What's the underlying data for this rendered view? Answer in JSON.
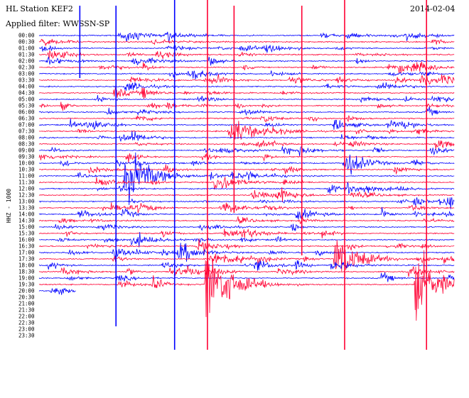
{
  "header": {
    "station": "HL Station KEF2",
    "date": "2014-02-04",
    "filter": "Applied filter: WWSSN-SP"
  },
  "chart_data": {
    "type": "line",
    "title": "HL Station KEF2",
    "subtitle": "Applied filter: WWSSN-SP",
    "date": "2014-02-04",
    "ylabel": "HHZ - 1000",
    "row_labels": [
      "00:00",
      "00:30",
      "01:00",
      "01:30",
      "02:00",
      "02:30",
      "03:00",
      "03:30",
      "04:00",
      "04:30",
      "05:00",
      "05:30",
      "06:00",
      "06:30",
      "07:00",
      "07:30",
      "08:00",
      "08:30",
      "09:00",
      "09:30",
      "10:00",
      "10:30",
      "11:00",
      "11:30",
      "12:00",
      "12:30",
      "13:00",
      "13:30",
      "14:00",
      "14:30",
      "15:00",
      "15:30",
      "16:00",
      "16:30",
      "17:00",
      "17:30",
      "18:00",
      "18:30",
      "19:00",
      "19:30",
      "20:00",
      "20:30",
      "21:00",
      "21:30",
      "22:00",
      "22:30",
      "23:00",
      "23:30"
    ],
    "trace_colors": [
      "#0000ff",
      "#ff0033"
    ],
    "recorded_rows": 41,
    "last_row_fraction": 0.09,
    "major_events": [
      {
        "x_frac": 0.4,
        "row": 39,
        "amplitude": 90,
        "color": "#ff0033"
      },
      {
        "x_frac": 0.71,
        "row": 35,
        "amplitude": 60,
        "color": "#ff0033"
      },
      {
        "x_frac": 0.904,
        "row": 39,
        "amplitude": 80,
        "color": "#ff0033"
      },
      {
        "x_frac": 0.206,
        "row": 22,
        "amplitude": 70,
        "color": "#0000ff"
      },
      {
        "x_frac": 0.455,
        "row": 15,
        "amplitude": 40,
        "color": "#ff0033"
      }
    ],
    "grid": false
  }
}
